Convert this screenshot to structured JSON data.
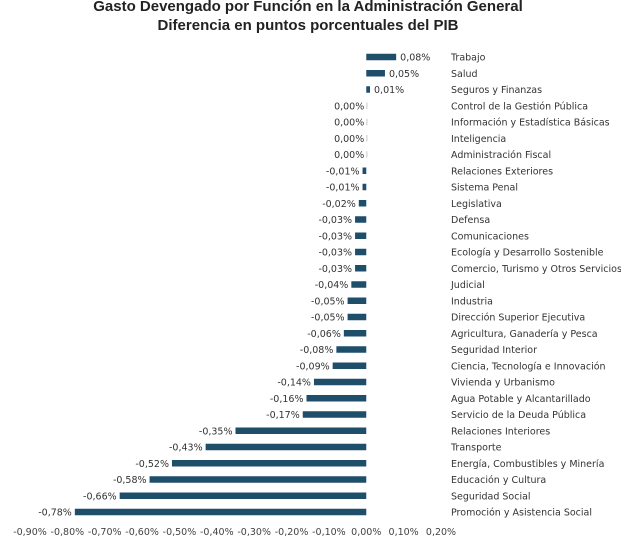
{
  "chart_data": {
    "type": "bar",
    "orientation": "horizontal",
    "title_lines": [
      "Gasto Devengado por Función en la Administración General",
      "Diferencia en puntos porcentuales del PIB"
    ],
    "bar_color": "#1f4e6b",
    "categories": [
      "Trabajo",
      "Salud",
      "Seguros y Finanzas",
      "Control de la Gestión Pública",
      "Información y Estadística Básicas",
      "Inteligencia",
      "Administración Fiscal",
      "Relaciones Exteriores",
      "Sistema Penal",
      "Legislativa",
      "Defensa",
      "Comunicaciones",
      "Ecología y Desarrollo Sostenible",
      "Comercio, Turismo y Otros Servicios",
      "Judicial",
      "Industria",
      "Dirección Superior Ejecutiva",
      "Agricultura, Ganadería y Pesca",
      "Seguridad Interior",
      "Ciencia, Tecnología e Innovación",
      "Vivienda y Urbanismo",
      "Agua Potable y Alcantarillado",
      "Servicio de la Deuda Pública",
      "Relaciones Interiores",
      "Transporte",
      "Energía, Combustibles y Minería",
      "Educación y Cultura",
      "Seguridad Social",
      "Promoción y Asistencia Social"
    ],
    "values": [
      0.08,
      0.05,
      0.01,
      0.0,
      0.0,
      0.0,
      0.0,
      -0.01,
      -0.01,
      -0.02,
      -0.03,
      -0.03,
      -0.03,
      -0.03,
      -0.04,
      -0.05,
      -0.05,
      -0.06,
      -0.08,
      -0.09,
      -0.14,
      -0.16,
      -0.17,
      -0.35,
      -0.43,
      -0.52,
      -0.58,
      -0.66,
      -0.78
    ],
    "value_labels": [
      "0,08%",
      "0,05%",
      "0,01%",
      "0,00%",
      "0,00%",
      "0,00%",
      "0,00%",
      "-0,01%",
      "-0,01%",
      "-0,02%",
      "-0,03%",
      "-0,03%",
      "-0,03%",
      "-0,03%",
      "-0,04%",
      "-0,05%",
      "-0,05%",
      "-0,06%",
      "-0,08%",
      "-0,09%",
      "-0,14%",
      "-0,16%",
      "-0,17%",
      "-0,35%",
      "-0,43%",
      "-0,52%",
      "-0,58%",
      "-0,66%",
      "-0,78%"
    ],
    "xlim": [
      -0.9,
      0.2
    ],
    "xticks": [
      -0.9,
      -0.8,
      -0.7,
      -0.6,
      -0.5,
      -0.4,
      -0.3,
      -0.2,
      -0.1,
      0.0,
      0.1,
      0.2
    ],
    "xtick_labels": [
      "-0,90%",
      "-0,80%",
      "-0,70%",
      "-0,60%",
      "-0,50%",
      "-0,40%",
      "-0,30%",
      "-0,20%",
      "-0,10%",
      "0,00%",
      "0,10%",
      "0,20%"
    ],
    "grid": false
  }
}
